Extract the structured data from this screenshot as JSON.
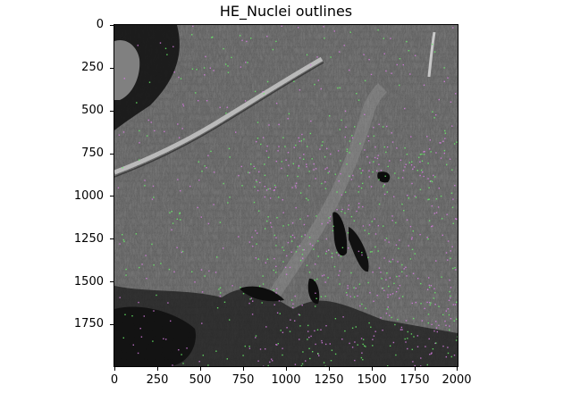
{
  "figure": {
    "title": "HE_Nuclei outlines",
    "image": {
      "description_kind": "grayscale histology texture with magenta and green nucleus outlines",
      "colors": {
        "base": "#5a5a5a",
        "dark": "#111111",
        "light": "#a8a8a8",
        "outline_magenta": "#d67be0",
        "outline_green": "#69f069"
      }
    },
    "x_axis": {
      "range": [
        0,
        2000
      ],
      "ticks": [
        "0",
        "250",
        "500",
        "750",
        "1000",
        "1250",
        "1500",
        "1750",
        "2000"
      ]
    },
    "y_axis": {
      "range": [
        0,
        2000
      ],
      "inverted": true,
      "ticks": [
        "0",
        "250",
        "500",
        "750",
        "1000",
        "1250",
        "1500",
        "1750"
      ]
    }
  }
}
